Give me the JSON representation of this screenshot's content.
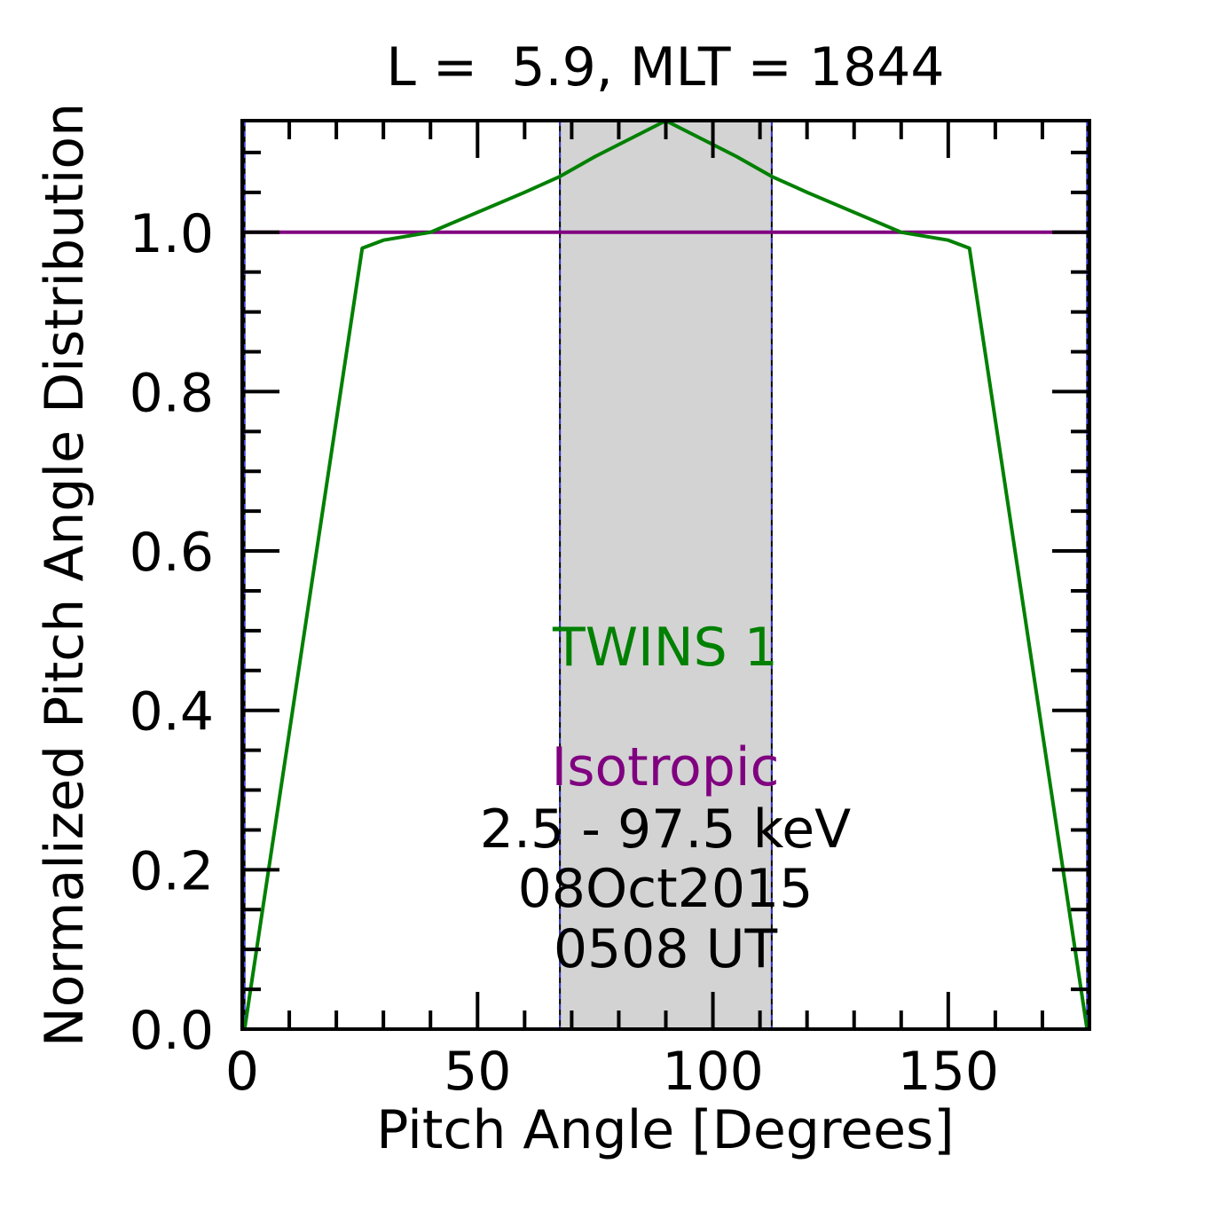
{
  "chart_data": {
    "type": "line",
    "title": "L =  5.9, MLT = 1844",
    "xlabel": "Pitch Angle [Degrees]",
    "ylabel": "Normalized Pitch Angle Distribution",
    "xlim": [
      0,
      180
    ],
    "ylim": [
      0,
      1.14
    ],
    "x_ticks": [
      0,
      50,
      100,
      150
    ],
    "x_tick_labels": [
      "0",
      "50",
      "100",
      "150"
    ],
    "y_ticks": [
      0,
      0.2,
      0.4,
      0.6,
      0.8,
      1.0
    ],
    "y_tick_labels": [
      "0.0",
      "0.2",
      "0.4",
      "0.6",
      "0.8",
      "1.0"
    ],
    "x_minor_step": 10,
    "y_minor_step": 0.05,
    "grid": false,
    "shaded_region": {
      "x_range": [
        67.5,
        112.5
      ],
      "color": "#d3d3d3"
    },
    "vertical_lines": [
      0.5,
      67.5,
      112.5,
      179.5
    ],
    "series": [
      {
        "name": "TWINS 1",
        "color": "#008000",
        "x": [
          0.5,
          25.5,
          30,
          40,
          50,
          60,
          67.5,
          75,
          85,
          90,
          95,
          105,
          112.5,
          120,
          130,
          140,
          150,
          154.5,
          179.5
        ],
        "values": [
          0.0,
          0.98,
          0.99,
          1.0,
          1.025,
          1.05,
          1.07,
          1.095,
          1.125,
          1.14,
          1.125,
          1.095,
          1.07,
          1.05,
          1.025,
          1.0,
          0.99,
          0.98,
          0.0
        ]
      },
      {
        "name": "Isotropic",
        "color": "#800080",
        "x": [
          0.5,
          179.5
        ],
        "values": [
          1.0,
          1.0
        ]
      }
    ],
    "annotations": [
      {
        "text": "TWINS 1",
        "color": "#008000"
      },
      {
        "text": "Isotropic",
        "color": "#800080"
      },
      {
        "text": "2.5 - 97.5 keV",
        "color": "#000000"
      },
      {
        "text": "08Oct2015",
        "color": "#000000"
      },
      {
        "text": "0508 UT",
        "color": "#000000"
      }
    ]
  }
}
